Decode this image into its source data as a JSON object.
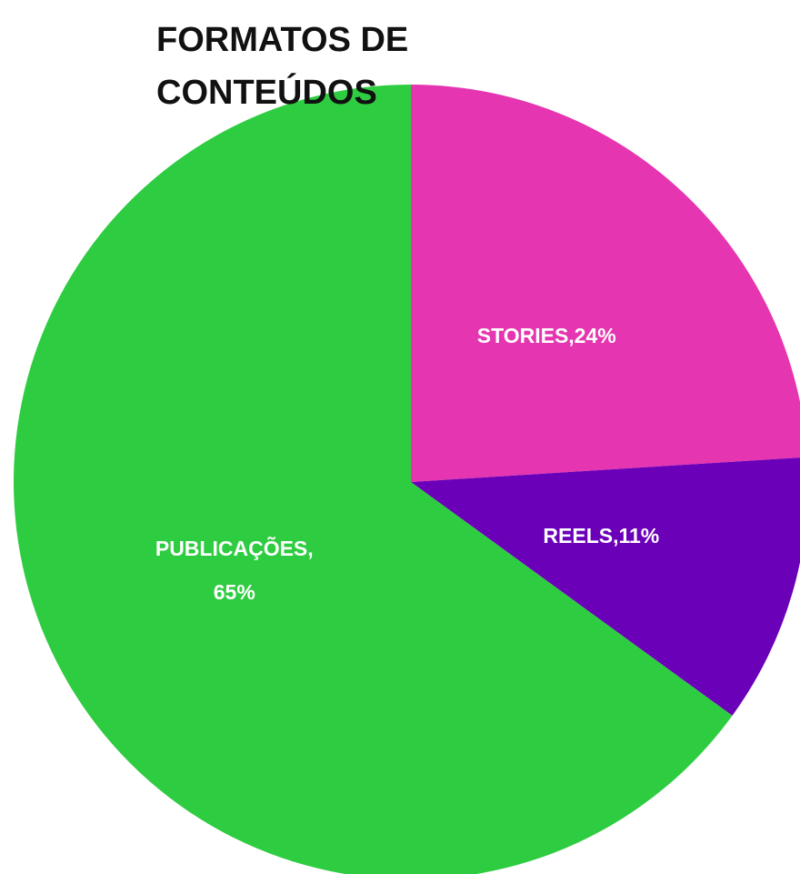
{
  "chart_data": {
    "type": "pie",
    "title": "FORMATOS DE CONTEÚDOS",
    "categories": [
      "STORIES",
      "REELS",
      "PUBLICAÇÕES"
    ],
    "values": [
      24,
      11,
      65
    ],
    "value_labels": [
      "STORIES,24%",
      "REELS,11%",
      "PUBLICAÇÕES, 65%"
    ],
    "colors": [
      "#e535b0",
      "#6a00b8",
      "#2ecc40"
    ]
  }
}
